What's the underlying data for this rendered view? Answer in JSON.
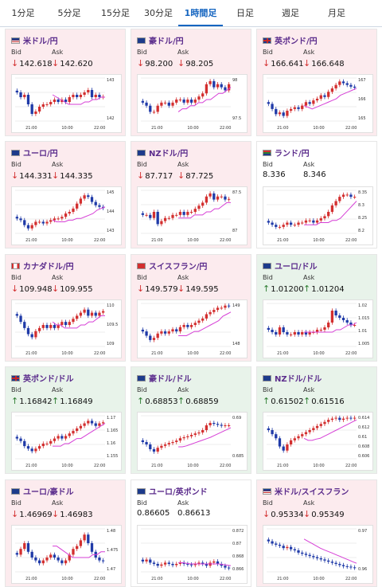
{
  "tabs": [
    "1分足",
    "5分足",
    "15分足",
    "30分足",
    "1時間足",
    "日足",
    "週足",
    "月足"
  ],
  "active_tab": 4,
  "bid_label": "Bid",
  "ask_label": "Ask",
  "time_ticks": [
    "21:00",
    "10:00",
    "22:00"
  ],
  "colors": {
    "down": "#d32f2f",
    "up": "#2e7d32",
    "ma": "#d63fd6",
    "candle_up": "#d32f2f",
    "candle_down": "#1f3aa8",
    "title": "#5b2c8c"
  },
  "pairs": [
    {
      "name": "米ドル/円",
      "flag": "us",
      "dir": "down",
      "bid": "142.618",
      "ask": "142.620",
      "yticks": [
        "143",
        "142"
      ],
      "chart_data": {
        "type": "candlestick",
        "ylim": [
          141.6,
          143.4
        ],
        "closes": [
          142.8,
          142.6,
          142.7,
          142.3,
          141.9,
          142.0,
          142.2,
          142.3,
          142.3,
          142.4,
          142.5,
          142.4,
          142.5,
          142.4,
          142.6,
          142.7,
          142.6,
          142.7,
          142.8,
          142.9,
          142.6,
          142.7,
          142.6,
          142.62
        ],
        "ma": [
          142.7,
          142.6,
          142.5,
          142.4,
          142.3,
          142.3,
          142.3,
          142.3,
          142.4,
          142.4,
          142.5,
          142.5,
          142.6,
          142.6
        ]
      }
    },
    {
      "name": "豪ドル/円",
      "flag": "au",
      "dir": "down",
      "bid": "98.200",
      "ask": "98.205",
      "yticks": [
        "98",
        "97.5"
      ],
      "chart_data": {
        "type": "candlestick",
        "ylim": [
          97.0,
          98.4
        ],
        "closes": [
          97.6,
          97.5,
          97.3,
          97.3,
          97.5,
          97.6,
          97.6,
          97.5,
          97.6,
          97.7,
          97.7,
          97.6,
          97.7,
          97.6,
          97.7,
          97.8,
          97.9,
          98.2,
          98.3,
          98.1,
          98.2,
          98.1,
          98.0,
          98.2
        ],
        "ma": [
          97.3,
          97.4,
          97.4,
          97.5,
          97.5,
          97.6,
          97.6,
          97.7,
          97.7,
          97.8,
          97.9,
          97.9,
          98.0,
          98.1
        ]
      }
    },
    {
      "name": "英ポンド/円",
      "flag": "gb",
      "dir": "down",
      "bid": "166.641",
      "ask": "166.648",
      "yticks": [
        "167",
        "166",
        "165"
      ],
      "chart_data": {
        "type": "candlestick",
        "ylim": [
          164.7,
          167.2
        ],
        "closes": [
          165.7,
          165.4,
          165.1,
          165.2,
          165.0,
          165.3,
          165.4,
          165.5,
          165.4,
          165.6,
          165.8,
          165.7,
          165.9,
          166.0,
          166.2,
          166.1,
          166.4,
          166.6,
          166.8,
          167.0,
          166.9,
          166.8,
          166.7,
          166.64
        ],
        "ma": [
          165.6,
          165.5,
          165.4,
          165.5,
          165.6,
          165.7,
          165.8,
          165.9,
          166.0,
          166.2,
          166.3,
          166.4,
          166.5,
          166.6
        ]
      }
    },
    {
      "name": "ユーロ/円",
      "flag": "eu",
      "dir": "down",
      "bid": "144.331",
      "ask": "144.335",
      "yticks": [
        "145",
        "144",
        "143"
      ],
      "chart_data": {
        "type": "candlestick",
        "ylim": [
          142.8,
          145.4
        ],
        "closes": [
          143.7,
          143.6,
          143.3,
          143.1,
          143.3,
          143.5,
          143.5,
          143.4,
          143.5,
          143.6,
          143.7,
          143.7,
          143.8,
          144.0,
          144.1,
          144.3,
          144.6,
          144.9,
          145.1,
          145.0,
          144.7,
          144.5,
          144.4,
          144.33
        ],
        "ma": [
          143.6,
          143.5,
          143.5,
          143.5,
          143.6,
          143.6,
          143.7,
          143.7,
          143.8,
          143.9,
          144.0,
          144.2,
          144.3,
          144.4
        ]
      }
    },
    {
      "name": "NZドル/円",
      "flag": "nz",
      "dir": "down",
      "bid": "87.717",
      "ask": "87.725",
      "yticks": [
        "87.5",
        "87"
      ],
      "chart_data": {
        "type": "candlestick",
        "ylim": [
          86.6,
          88.0
        ],
        "closes": [
          87.2,
          87.2,
          87.1,
          87.3,
          86.9,
          87.0,
          87.1,
          87.1,
          87.2,
          87.2,
          87.3,
          87.2,
          87.3,
          87.3,
          87.4,
          87.5,
          87.6,
          87.8,
          87.9,
          87.7,
          87.8,
          87.8,
          87.7,
          87.72
        ],
        "ma": [
          87.1,
          87.1,
          87.1,
          87.1,
          87.2,
          87.2,
          87.2,
          87.3,
          87.3,
          87.4,
          87.4,
          87.5,
          87.6,
          87.6
        ]
      }
    },
    {
      "name": "ランド/円",
      "flag": "za",
      "dir": "flat",
      "bid": "8.336",
      "ask": "8.346",
      "yticks": [
        "8.35",
        "8.3",
        "8.25",
        "8.2"
      ],
      "chart_data": {
        "type": "candlestick",
        "ylim": [
          8.17,
          8.37
        ],
        "closes": [
          8.22,
          8.21,
          8.2,
          8.2,
          8.21,
          8.22,
          8.21,
          8.21,
          8.22,
          8.22,
          8.23,
          8.23,
          8.22,
          8.23,
          8.24,
          8.25,
          8.27,
          8.3,
          8.32,
          8.34,
          8.35,
          8.35,
          8.34,
          8.34
        ],
        "ma": [
          8.21,
          8.21,
          8.21,
          8.21,
          8.22,
          8.22,
          8.22,
          8.23,
          8.23,
          8.24,
          8.26,
          8.28,
          8.3,
          8.32
        ]
      }
    },
    {
      "name": "カナダドル/円",
      "flag": "ca",
      "dir": "down",
      "bid": "109.948",
      "ask": "109.955",
      "yticks": [
        "110",
        "109.5",
        "109"
      ],
      "chart_data": {
        "type": "candlestick",
        "ylim": [
          108.8,
          110.2
        ],
        "closes": [
          109.8,
          109.6,
          109.4,
          109.2,
          109.1,
          109.3,
          109.4,
          109.5,
          109.4,
          109.5,
          109.4,
          109.5,
          109.6,
          109.5,
          109.6,
          109.7,
          109.8,
          109.9,
          110.0,
          109.8,
          109.9,
          109.8,
          109.9,
          109.95
        ],
        "ma": [
          109.6,
          109.5,
          109.5,
          109.4,
          109.4,
          109.4,
          109.4,
          109.5,
          109.5,
          109.6,
          109.6,
          109.7,
          109.8,
          109.8
        ]
      }
    },
    {
      "name": "スイスフラン/円",
      "flag": "ch",
      "dir": "down",
      "bid": "149.579",
      "ask": "149.595",
      "yticks": [
        "149",
        "148"
      ],
      "chart_data": {
        "type": "candlestick",
        "ylim": [
          147.7,
          149.7
        ],
        "closes": [
          148.4,
          148.2,
          148.0,
          148.1,
          148.3,
          148.4,
          148.3,
          148.4,
          148.5,
          148.4,
          148.6,
          148.7,
          148.6,
          148.7,
          148.8,
          148.9,
          149.0,
          149.2,
          149.3,
          149.4,
          149.5,
          149.5,
          149.6,
          149.58
        ],
        "ma": [
          148.2,
          148.2,
          148.2,
          148.3,
          148.4,
          148.4,
          148.5,
          148.6,
          148.7,
          148.8,
          148.9,
          149.1,
          149.2,
          149.3
        ]
      }
    },
    {
      "name": "ユーロ/ドル",
      "flag": "eu",
      "dir": "up",
      "bid": "1.01200",
      "ask": "1.01204",
      "yticks": [
        "1.02",
        "1.015",
        "1.01",
        "1.005"
      ],
      "chart_data": {
        "type": "candlestick",
        "ylim": [
          1.003,
          1.021
        ],
        "closes": [
          1.01,
          1.009,
          1.008,
          1.011,
          1.009,
          1.008,
          1.008,
          1.009,
          1.008,
          1.009,
          1.008,
          1.009,
          1.009,
          1.01,
          1.01,
          1.011,
          1.013,
          1.018,
          1.016,
          1.015,
          1.014,
          1.013,
          1.012,
          1.012
        ],
        "ma": [
          1.009,
          1.009,
          1.009,
          1.009,
          1.009,
          1.009,
          1.009,
          1.009,
          1.01,
          1.01,
          1.011,
          1.012,
          1.012,
          1.013
        ]
      }
    },
    {
      "name": "英ポンド/ドル",
      "flag": "gb",
      "dir": "up",
      "bid": "1.16842",
      "ask": "1.16849",
      "yticks": [
        "1.17",
        "1.165",
        "1.16",
        "1.155"
      ],
      "chart_data": {
        "type": "candlestick",
        "ylim": [
          1.154,
          1.171
        ],
        "closes": [
          1.162,
          1.161,
          1.159,
          1.158,
          1.157,
          1.158,
          1.159,
          1.16,
          1.16,
          1.161,
          1.162,
          1.163,
          1.162,
          1.163,
          1.164,
          1.165,
          1.166,
          1.167,
          1.168,
          1.169,
          1.168,
          1.167,
          1.168,
          1.1684
        ],
        "ma": [
          1.159,
          1.159,
          1.159,
          1.16,
          1.16,
          1.161,
          1.162,
          1.162,
          1.163,
          1.164,
          1.165,
          1.166,
          1.167,
          1.168
        ]
      }
    },
    {
      "name": "豪ドル/ドル",
      "flag": "au",
      "dir": "up",
      "bid": "0.68853",
      "ask": "0.68859",
      "yticks": [
        "0.69",
        "0.685"
      ],
      "chart_data": {
        "type": "candlestick",
        "ylim": [
          0.6815,
          0.6905
        ],
        "closes": [
          0.685,
          0.6845,
          0.6835,
          0.683,
          0.6838,
          0.6842,
          0.6845,
          0.6848,
          0.685,
          0.6853,
          0.6858,
          0.686,
          0.6862,
          0.6865,
          0.6868,
          0.687,
          0.6875,
          0.6885,
          0.689,
          0.6888,
          0.6886,
          0.6884,
          0.6885,
          0.6885
        ],
        "ma": [
          0.684,
          0.684,
          0.6842,
          0.6845,
          0.6848,
          0.6851,
          0.6854,
          0.6857,
          0.686,
          0.6864,
          0.6868,
          0.6872,
          0.6876,
          0.688
        ]
      }
    },
    {
      "name": "NZドル/ドル",
      "flag": "nz",
      "dir": "up",
      "bid": "0.61502",
      "ask": "0.61516",
      "yticks": [
        "0.614",
        "0.612",
        "0.61",
        "0.608",
        "0.606"
      ],
      "chart_data": {
        "type": "candlestick",
        "ylim": [
          0.605,
          0.6155
        ],
        "closes": [
          0.612,
          0.611,
          0.61,
          0.608,
          0.607,
          0.6085,
          0.6095,
          0.61,
          0.6105,
          0.611,
          0.6115,
          0.612,
          0.6125,
          0.613,
          0.6135,
          0.614,
          0.6145,
          0.6148,
          0.615,
          0.6145,
          0.6148,
          0.615,
          0.6149,
          0.615
        ],
        "ma": [
          0.61,
          0.6095,
          0.6095,
          0.6098,
          0.61,
          0.6105,
          0.611,
          0.6115,
          0.612,
          0.6125,
          0.613,
          0.6135,
          0.614,
          0.6145
        ]
      }
    },
    {
      "name": "ユーロ/豪ドル",
      "flag": "eu",
      "dir": "down",
      "bid": "1.46969",
      "ask": "1.46983",
      "yticks": [
        "1.48",
        "1.475",
        "1.47"
      ],
      "chart_data": {
        "type": "candlestick",
        "ylim": [
          1.466,
          1.481
        ],
        "closes": [
          1.472,
          1.474,
          1.476,
          1.473,
          1.471,
          1.47,
          1.469,
          1.47,
          1.471,
          1.472,
          1.471,
          1.47,
          1.469,
          1.47,
          1.472,
          1.474,
          1.475,
          1.477,
          1.479,
          1.476,
          1.473,
          1.471,
          1.47,
          1.4697
        ],
        "ma": [
          1.475,
          1.475,
          1.474,
          1.473,
          1.472,
          1.471,
          1.471,
          1.471,
          1.471,
          1.471,
          1.472,
          1.472,
          1.473,
          1.473
        ]
      }
    },
    {
      "name": "ユーロ/英ポンド",
      "flag": "eu",
      "dir": "flat",
      "bid": "0.86605",
      "ask": "0.86613",
      "yticks": [
        "0.872",
        "0.87",
        "0.868",
        "0.866"
      ],
      "chart_data": {
        "type": "candlestick",
        "ylim": [
          0.8655,
          0.8725
        ],
        "closes": [
          0.8672,
          0.8675,
          0.867,
          0.8668,
          0.8665,
          0.8667,
          0.867,
          0.8668,
          0.8666,
          0.8668,
          0.867,
          0.8668,
          0.8667,
          0.8666,
          0.8668,
          0.867,
          0.8668,
          0.8665,
          0.867,
          0.8672,
          0.8668,
          0.8665,
          0.8662,
          0.8661
        ],
        "ma": [
          0.867,
          0.867,
          0.8669,
          0.8668,
          0.8668,
          0.8668,
          0.8668,
          0.8668,
          0.8668,
          0.8668,
          0.8668,
          0.8667,
          0.8666,
          0.8665
        ]
      }
    },
    {
      "name": "米ドル/スイスフラン",
      "flag": "us",
      "dir": "down",
      "bid": "0.95334",
      "ask": "0.95349",
      "yticks": [
        "0.97",
        "0.96"
      ],
      "chart_data": {
        "type": "candlestick",
        "ylim": [
          0.9515,
          0.9705
        ],
        "closes": [
          0.965,
          0.964,
          0.9635,
          0.963,
          0.962,
          0.9625,
          0.9615,
          0.961,
          0.96,
          0.9595,
          0.959,
          0.9585,
          0.958,
          0.9575,
          0.957,
          0.9565,
          0.956,
          0.9555,
          0.955,
          0.9545,
          0.954,
          0.9538,
          0.9535,
          0.9533
        ],
        "ma": [
          0.966,
          0.965,
          0.964,
          0.963,
          0.962,
          0.9612,
          0.9605,
          0.9598,
          0.959,
          0.9583,
          0.9575,
          0.9568,
          0.956,
          0.9553
        ]
      }
    }
  ]
}
